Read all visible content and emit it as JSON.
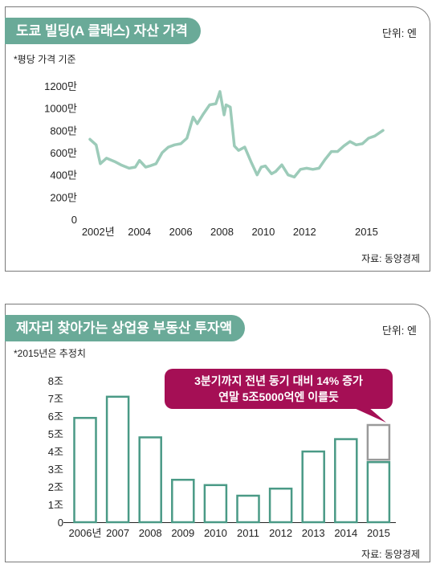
{
  "charts": [
    {
      "title": "도쿄 빌딩(A 클래스) 자산 가격",
      "unit": "단위: 엔",
      "note": "*평당 가격 기준",
      "source": "자료: 동양경제"
    },
    {
      "title": "제자리 찾아가는 상업용 부동산 투자액",
      "unit": "단위: 엔",
      "note": "*2015년은 추정치",
      "source": "자료: 동양경제",
      "callout": {
        "line1": "3분기까지 전년 동기 대비 14% 증가",
        "line2": "연말 5조5000억엔 이를듯"
      }
    }
  ],
  "chart_data": [
    {
      "type": "line",
      "title": "도쿄 빌딩(A 클래스) 자산 가격",
      "xlabel": "",
      "ylabel": "",
      "ylim": [
        0,
        1200
      ],
      "xlim": [
        2001.6,
        2015.8
      ],
      "yticks": [
        {
          "v": 0,
          "label": "0"
        },
        {
          "v": 200,
          "label": "200만"
        },
        {
          "v": 400,
          "label": "400만"
        },
        {
          "v": 600,
          "label": "600만"
        },
        {
          "v": 800,
          "label": "800만"
        },
        {
          "v": 1000,
          "label": "1000만"
        },
        {
          "v": 1200,
          "label": "1200만"
        }
      ],
      "xticks": [
        {
          "v": 2002,
          "label": "2002년"
        },
        {
          "v": 2004,
          "label": "2004"
        },
        {
          "v": 2006,
          "label": "2006"
        },
        {
          "v": 2008,
          "label": "2008"
        },
        {
          "v": 2010,
          "label": "2010"
        },
        {
          "v": 2012,
          "label": "2012"
        },
        {
          "v": 2015,
          "label": "2015"
        }
      ],
      "grid": false,
      "color": "#9ccbb9",
      "x": [
        2001.6,
        2001.9,
        2002.1,
        2002.4,
        2002.8,
        2003.1,
        2003.5,
        2003.8,
        2004.0,
        2004.3,
        2004.5,
        2004.8,
        2005.1,
        2005.4,
        2005.7,
        2006.0,
        2006.3,
        2006.6,
        2006.8,
        2007.1,
        2007.4,
        2007.7,
        2007.9,
        2008.1,
        2008.2,
        2008.4,
        2008.6,
        2008.8,
        2009.1,
        2009.4,
        2009.7,
        2009.9,
        2010.1,
        2010.4,
        2010.6,
        2010.9,
        2011.2,
        2011.5,
        2011.8,
        2012.1,
        2012.4,
        2012.7,
        2013.0,
        2013.3,
        2013.6,
        2013.9,
        2014.2,
        2014.5,
        2014.8,
        2015.1,
        2015.4,
        2015.8
      ],
      "values": [
        720,
        670,
        500,
        550,
        520,
        490,
        460,
        470,
        530,
        470,
        480,
        500,
        600,
        650,
        670,
        680,
        730,
        920,
        860,
        950,
        1030,
        1040,
        1150,
        940,
        1030,
        1010,
        660,
        620,
        650,
        520,
        400,
        470,
        480,
        410,
        430,
        490,
        400,
        380,
        450,
        460,
        450,
        460,
        540,
        610,
        610,
        660,
        700,
        670,
        680,
        730,
        750,
        800
      ]
    },
    {
      "type": "bar",
      "title": "제자리 찾아가는 상업용 부동산 투자액",
      "xlabel": "",
      "ylabel": "",
      "ylim": [
        0,
        8
      ],
      "yticks": [
        {
          "v": 0,
          "label": "0"
        },
        {
          "v": 1,
          "label": "1조"
        },
        {
          "v": 2,
          "label": "2조"
        },
        {
          "v": 3,
          "label": "3조"
        },
        {
          "v": 4,
          "label": "4조"
        },
        {
          "v": 5,
          "label": "5조"
        },
        {
          "v": 6,
          "label": "6조"
        },
        {
          "v": 7,
          "label": "7조"
        },
        {
          "v": 8,
          "label": "8조"
        }
      ],
      "categories": [
        "2006년",
        "2007",
        "2008",
        "2009",
        "2010",
        "2011",
        "2012",
        "2013",
        "2014",
        "2015"
      ],
      "grid": false,
      "color": "#4a9a86",
      "projected_color": "#9a9a9a",
      "series": [
        {
          "values": [
            5.9,
            7.1,
            4.8,
            2.4,
            2.1,
            1.5,
            1.9,
            4.0,
            4.7,
            3.4
          ]
        },
        {
          "values": [
            0,
            0,
            0,
            0,
            0,
            0,
            0,
            0,
            0,
            2.1
          ]
        }
      ]
    }
  ]
}
